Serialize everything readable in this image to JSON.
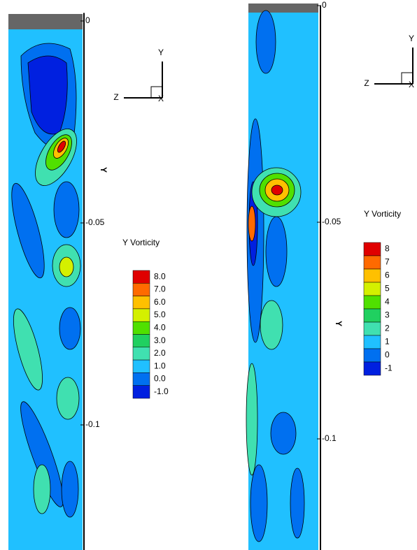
{
  "chart_data": [
    {
      "type": "contour",
      "title": "Y Vorticity",
      "y_label": "Y",
      "axis_triad": {
        "y": "Y",
        "z": "Z",
        "x": "X"
      },
      "ylim": [
        -0.131,
        0.002
      ],
      "yticks": [
        0,
        -0.05,
        -0.1
      ],
      "levels": [
        {
          "value": 8,
          "label": "8.0"
        },
        {
          "value": 7,
          "label": "7.0"
        },
        {
          "value": 6,
          "label": "6.0"
        },
        {
          "value": 5,
          "label": "5.0"
        },
        {
          "value": 4,
          "label": "4.0"
        },
        {
          "value": 3,
          "label": "3.0"
        },
        {
          "value": 2,
          "label": "2.0"
        },
        {
          "value": 1,
          "label": "1.0"
        },
        {
          "value": 0,
          "label": "0.0"
        },
        {
          "value": -1,
          "label": "-1.0"
        }
      ],
      "colors": [
        "#e00000",
        "#ff6a00",
        "#ffc000",
        "#d4f000",
        "#50e000",
        "#20d060",
        "#40e0b0",
        "#20c0ff",
        "#0070f0",
        "#0020e0"
      ]
    },
    {
      "type": "contour",
      "title": "Y Vorticity",
      "y_label": "Y",
      "axis_triad": {
        "y": "Y",
        "z": "Z",
        "x": "X"
      },
      "ylim": [
        -0.126,
        0.0
      ],
      "yticks": [
        0,
        -0.05,
        -0.1
      ],
      "levels": [
        8,
        7,
        6,
        5,
        4,
        3,
        2,
        1,
        0,
        -1
      ],
      "colors": [
        "#e00000",
        "#ff6a00",
        "#ffc000",
        "#d4f000",
        "#50e000",
        "#20d060",
        "#40e0b0",
        "#20c0ff",
        "#0070f0",
        "#0020e0"
      ]
    }
  ]
}
